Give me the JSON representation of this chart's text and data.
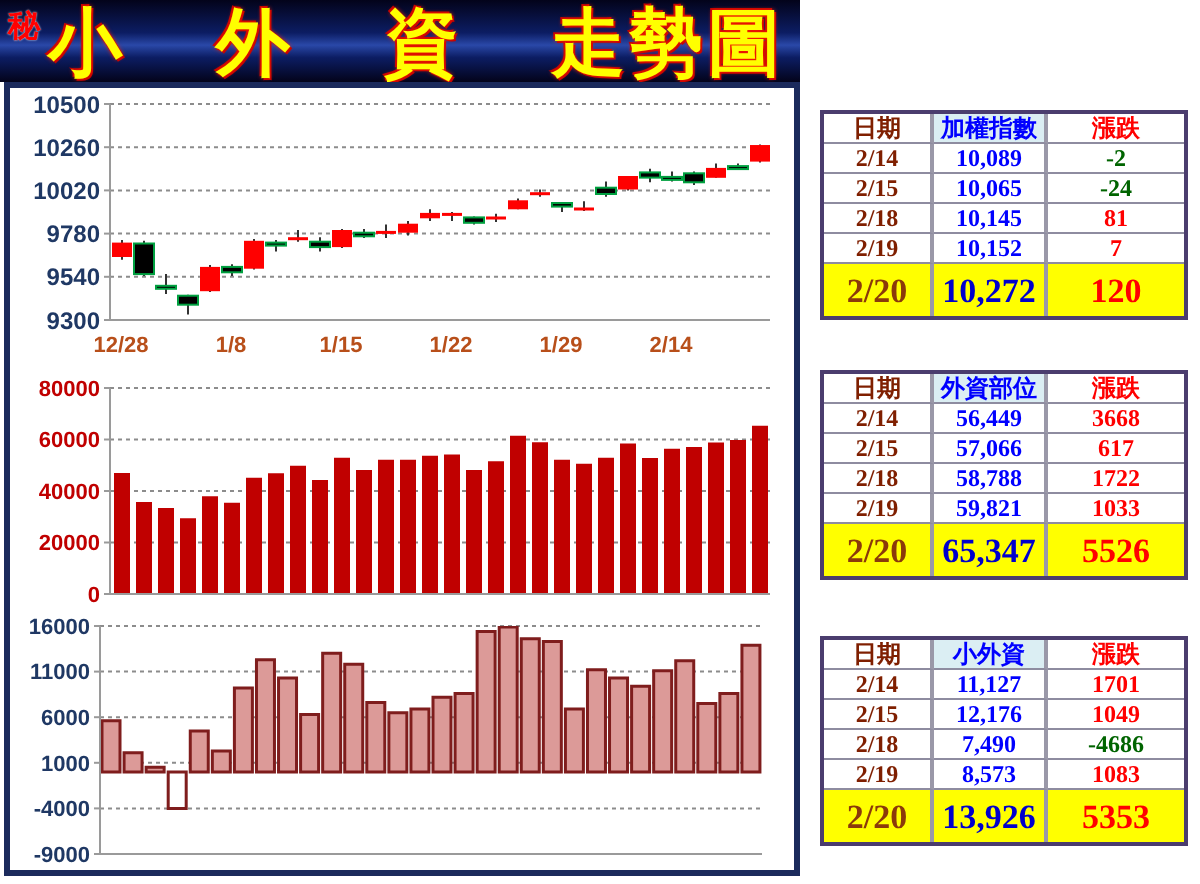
{
  "chart_data": [
    {
      "type": "candlestick",
      "title": "小 外 資 走勢圖",
      "annotations": [
        "秘"
      ],
      "categories": [
        "12/28",
        null,
        null,
        null,
        null,
        "1/8",
        null,
        null,
        null,
        null,
        "1/15",
        null,
        null,
        null,
        null,
        "1/22",
        null,
        null,
        null,
        null,
        "1/29",
        null,
        null,
        null,
        null,
        "2/14",
        null,
        null,
        null,
        null
      ],
      "ohlc": [
        [
          9650,
          9745,
          9635,
          9730
        ],
        [
          9725,
          9740,
          9545,
          9555
        ],
        [
          9490,
          9555,
          9445,
          9480
        ],
        [
          9435,
          9440,
          9330,
          9385
        ],
        [
          9460,
          9605,
          9455,
          9595
        ],
        [
          9595,
          9610,
          9545,
          9565
        ],
        [
          9585,
          9750,
          9580,
          9740
        ],
        [
          9730,
          9745,
          9680,
          9715
        ],
        [
          9750,
          9800,
          9735,
          9760
        ],
        [
          9735,
          9760,
          9680,
          9705
        ],
        [
          9705,
          9805,
          9700,
          9800
        ],
        [
          9785,
          9805,
          9755,
          9765
        ],
        [
          9785,
          9830,
          9755,
          9795
        ],
        [
          9785,
          9850,
          9770,
          9835
        ],
        [
          9865,
          9915,
          9850,
          9895
        ],
        [
          9885,
          9900,
          9850,
          9895
        ],
        [
          9870,
          9875,
          9830,
          9840
        ],
        [
          9865,
          9890,
          9845,
          9875
        ],
        [
          9915,
          9975,
          9915,
          9965
        ],
        [
          10000,
          10025,
          9985,
          10010
        ],
        [
          9950,
          9955,
          9900,
          9930
        ],
        [
          9920,
          9960,
          9905,
          9925
        ],
        [
          10035,
          10070,
          9985,
          10000
        ],
        [
          10025,
          10100,
          10020,
          10100
        ],
        [
          10120,
          10140,
          10065,
          10091
        ],
        [
          10095,
          10125,
          10070,
          10089
        ],
        [
          10115,
          10125,
          10050,
          10065
        ],
        [
          10090,
          10170,
          10090,
          10145
        ],
        [
          10155,
          10170,
          10140,
          10152
        ],
        [
          10180,
          10275,
          10175,
          10272
        ]
      ],
      "colors": [
        "#ff0000",
        "#000000",
        "#000000",
        "#000000",
        "#ff0000",
        "#000000",
        "#ff0000",
        "#000000",
        "#ff0000",
        "#000000",
        "#ff0000",
        "#000000",
        "#ff0000",
        "#ff0000",
        "#ff0000",
        "#ff0000",
        "#000000",
        "#ff0000",
        "#ff0000",
        "#ff0000",
        "#000000",
        "#ff0000",
        "#000000",
        "#ff0000",
        "#000000",
        "#000000",
        "#000000",
        "#ff0000",
        "#000000",
        "#ff0000"
      ],
      "ylim": [
        9300,
        10500
      ],
      "yticks": [
        9300,
        9540,
        9780,
        10020,
        10260,
        10500
      ],
      "grid": "y"
    },
    {
      "type": "bar",
      "categories": [
        null,
        null,
        null,
        null,
        null,
        null,
        null,
        null,
        null,
        null,
        null,
        null,
        null,
        null,
        null,
        null,
        null,
        null,
        null,
        null,
        null,
        null,
        null,
        null,
        null,
        null,
        null,
        null,
        null,
        null
      ],
      "values": [
        47000,
        35700,
        33400,
        29400,
        38000,
        35400,
        45100,
        46900,
        49800,
        44300,
        52900,
        48200,
        52100,
        52100,
        53700,
        54200,
        48200,
        51600,
        61500,
        58900,
        52100,
        50600,
        52900,
        58400,
        52800,
        56400,
        57100,
        58800,
        59800,
        65300
      ],
      "color": "#c00000",
      "ylim": [
        0,
        80000
      ],
      "yticks": [
        0,
        20000,
        40000,
        60000,
        80000
      ],
      "grid": "y",
      "tick_labels": "y"
    },
    {
      "type": "bar",
      "categories": [
        null,
        null,
        null,
        null,
        null,
        null,
        null,
        null,
        null,
        null,
        null,
        null,
        null,
        null,
        null,
        null,
        null,
        null,
        null,
        null,
        null,
        null,
        null,
        null,
        null,
        null,
        null,
        null,
        null,
        null
      ],
      "values": [
        5600,
        2100,
        500,
        -4000,
        4500,
        2300,
        9200,
        12300,
        10300,
        6300,
        13000,
        11800,
        7600,
        6500,
        6900,
        8200,
        8600,
        15400,
        15900,
        14600,
        14300,
        6900,
        11200,
        10300,
        9400,
        11100,
        12200,
        7500,
        8600,
        13900
      ],
      "colors": [
        "#dc9a98",
        "#dc9a98",
        "#dc9a98",
        "#ffffff",
        "#dc9a98",
        "#dc9a98",
        "#dc9a98",
        "#dc9a98",
        "#dc9a98",
        "#dc9a98",
        "#dc9a98",
        "#dc9a98",
        "#dc9a98",
        "#dc9a98",
        "#dc9a98",
        "#dc9a98",
        "#dc9a98",
        "#dc9a98",
        "#dc9a98",
        "#dc9a98",
        "#dc9a98",
        "#dc9a98",
        "#dc9a98",
        "#dc9a98",
        "#dc9a98",
        "#dc9a98",
        "#dc9a98",
        "#dc9a98",
        "#dc9a98",
        "#dc9a98"
      ],
      "ylim": [
        -9000,
        16000
      ],
      "yticks": [
        -9000,
        -4000,
        1000,
        6000,
        11000,
        16000
      ],
      "grid": "y",
      "tick_labels": "y"
    },
    {
      "type": "other",
      "annotations": [
        "日期",
        "加權指數",
        "漲跌",
        "2/14",
        "10,089",
        "-2",
        "2/15",
        "10,065",
        "-24",
        "2/18",
        "10,145",
        "81",
        "2/19",
        "10,152",
        "7",
        "2/20",
        "10,272",
        "120"
      ],
      "colors": [
        "#7f1f00",
        "#0000ff",
        "#ff0000",
        "#7f1f00",
        "#0000ff",
        "#006400",
        "#7f1f00",
        "#0000ff",
        "#006400",
        "#7f1f00",
        "#0000ff",
        "#ff0000",
        "#7f1f00",
        "#0000ff",
        "#ff0000",
        "#8b3a0a",
        "#0000cc",
        "#ff0000"
      ]
    },
    {
      "type": "other",
      "annotations": [
        "日期",
        "外資部位",
        "漲跌",
        "2/14",
        "56,449",
        "3668",
        "2/15",
        "57,066",
        "617",
        "2/18",
        "58,788",
        "1722",
        "2/19",
        "59,821",
        "1033",
        "2/20",
        "65,347",
        "5526"
      ],
      "colors": [
        "#7f1f00",
        "#0000ff",
        "#ff0000",
        "#7f1f00",
        "#0000ff",
        "#ff0000",
        "#7f1f00",
        "#0000ff",
        "#ff0000",
        "#7f1f00",
        "#0000ff",
        "#ff0000",
        "#7f1f00",
        "#0000ff",
        "#ff0000",
        "#8b3a0a",
        "#0000cc",
        "#ff0000"
      ]
    },
    {
      "type": "other",
      "annotations": [
        "日期",
        "小外資",
        "漲跌",
        "2/14",
        "11,127",
        "1701",
        "2/15",
        "12,176",
        "1049",
        "2/18",
        "7,490",
        "-4686",
        "2/19",
        "8,573",
        "1083",
        "2/20",
        "13,926",
        "5353"
      ],
      "colors": [
        "#7f1f00",
        "#0000ff",
        "#ff0000",
        "#7f1f00",
        "#0000ff",
        "#ff0000",
        "#7f1f00",
        "#0000ff",
        "#ff0000",
        "#7f1f00",
        "#0000ff",
        "#006400",
        "#7f1f00",
        "#0000ff",
        "#ff0000",
        "#8b3a0a",
        "#0000cc",
        "#ff0000"
      ]
    }
  ]
}
